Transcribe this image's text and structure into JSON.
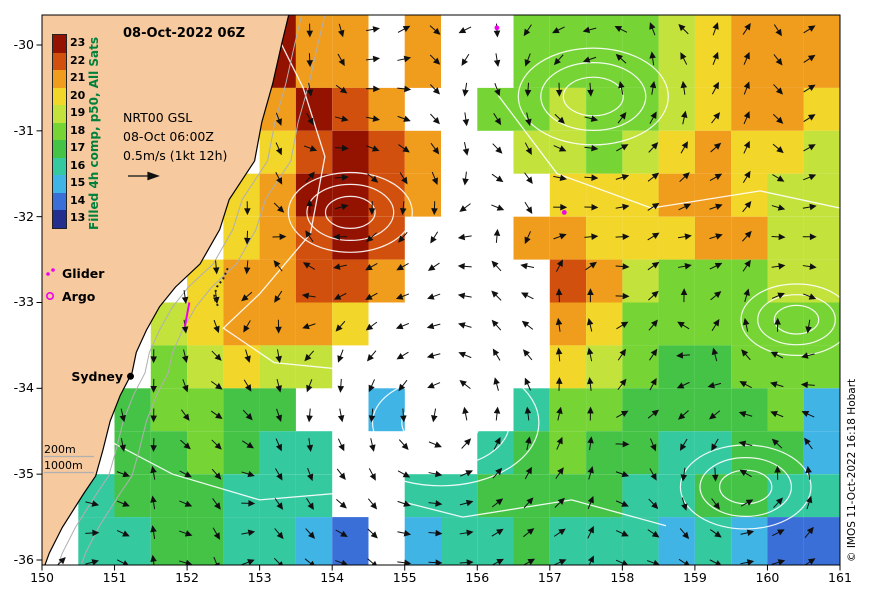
{
  "figure": {
    "title_date": "08-Oct-2022 06Z",
    "model": {
      "name": "NRT00 GSL",
      "time": "08-Oct 06:00Z",
      "scale": "0.5m/s (1kt 12h)"
    },
    "legend": {
      "glider": "Glider",
      "argo": "Argo"
    },
    "city_label": "Sydney",
    "depth_labels": [
      "200m",
      "1000m"
    ],
    "copyright": "© IMOS 11-Oct-2022 16:18 Hobart"
  },
  "colorbar": {
    "label": "Filled 4h comp, p50, All Sats",
    "label_color": "#00803c",
    "tick_labels": [
      "23",
      "22",
      "21",
      "20",
      "19",
      "18",
      "17",
      "16",
      "15",
      "14",
      "13"
    ]
  },
  "axes": {
    "x_ticks": [
      "150",
      "151",
      "152",
      "153",
      "154",
      "155",
      "156",
      "157",
      "158",
      "159",
      "160",
      "161"
    ],
    "y_ticks": [
      "-30",
      "-31",
      "-32",
      "-33",
      "-34",
      "-35",
      "-36"
    ]
  },
  "chart_data": {
    "type": "heatmap",
    "lon_range": [
      150,
      161
    ],
    "lat_range": [
      -36.06,
      -29.65
    ],
    "temp_range": [
      13,
      23
    ],
    "colormap": [
      "#242e8c",
      "#3a6fd8",
      "#41b4e6",
      "#35c9a0",
      "#45c347",
      "#76d435",
      "#c3e23c",
      "#f2d629",
      "#f09c1c",
      "#d2500e",
      "#941200"
    ],
    "colors": {
      "land": "#f6c99e",
      "marker_magenta": "#ee00ee",
      "contour_white": "#ffffff",
      "bathy_gray": "#b0b0b0",
      "arrow_black": "#111111"
    },
    "grid": {
      "lon_start": 150.0,
      "lon_step": 0.5,
      "lat_start": -30.0,
      "lat_step": -0.5,
      "values": [
        [
          null,
          null,
          null,
          null,
          null,
          null,
          23,
          21,
          21,
          null,
          21,
          null,
          null,
          18,
          18,
          18,
          18,
          19,
          20,
          21,
          21,
          21
        ],
        [
          null,
          null,
          null,
          null,
          null,
          null,
          21,
          23,
          22,
          21,
          null,
          null,
          18,
          18,
          19,
          18,
          18,
          19,
          20,
          21,
          21,
          20
        ],
        [
          null,
          null,
          null,
          null,
          null,
          null,
          20,
          22,
          23,
          22,
          21,
          null,
          null,
          19,
          19,
          18,
          19,
          20,
          21,
          20,
          20,
          19
        ],
        [
          null,
          null,
          null,
          null,
          null,
          20,
          21,
          23,
          23,
          22,
          21,
          null,
          null,
          null,
          20,
          20,
          20,
          21,
          21,
          20,
          19,
          19
        ],
        [
          null,
          null,
          null,
          null,
          null,
          20,
          21,
          22,
          23,
          22,
          null,
          null,
          null,
          21,
          21,
          20,
          20,
          20,
          21,
          21,
          19,
          19
        ],
        [
          null,
          null,
          null,
          null,
          20,
          21,
          21,
          22,
          22,
          21,
          null,
          null,
          null,
          null,
          22,
          21,
          19,
          18,
          18,
          18,
          19,
          19
        ],
        [
          null,
          null,
          null,
          19,
          20,
          21,
          21,
          21,
          20,
          null,
          null,
          null,
          null,
          null,
          21,
          20,
          18,
          18,
          18,
          18,
          18,
          18
        ],
        [
          null,
          null,
          null,
          18,
          19,
          20,
          19,
          19,
          null,
          null,
          null,
          null,
          null,
          null,
          20,
          19,
          18,
          17,
          17,
          18,
          18,
          18
        ],
        [
          null,
          null,
          17,
          18,
          18,
          17,
          17,
          null,
          null,
          15,
          null,
          null,
          null,
          16,
          18,
          18,
          17,
          17,
          17,
          17,
          18,
          15
        ],
        [
          null,
          null,
          17,
          17,
          18,
          17,
          16,
          16,
          null,
          null,
          null,
          null,
          16,
          17,
          18,
          17,
          17,
          16,
          16,
          17,
          17,
          15
        ],
        [
          null,
          16,
          17,
          17,
          17,
          16,
          16,
          16,
          null,
          null,
          16,
          16,
          17,
          17,
          17,
          17,
          16,
          16,
          17,
          17,
          16,
          16
        ],
        [
          null,
          16,
          16,
          17,
          17,
          16,
          16,
          15,
          14,
          null,
          15,
          16,
          16,
          17,
          16,
          16,
          16,
          15,
          16,
          15,
          14,
          14
        ]
      ]
    },
    "coastline": [
      [
        153.4,
        -29.65
      ],
      [
        153.3,
        -30.0
      ],
      [
        153.18,
        -30.45
      ],
      [
        153.03,
        -30.9
      ],
      [
        152.93,
        -31.35
      ],
      [
        152.58,
        -31.8
      ],
      [
        152.45,
        -32.15
      ],
      [
        152.18,
        -32.55
      ],
      [
        151.84,
        -32.82
      ],
      [
        151.62,
        -33.05
      ],
      [
        151.44,
        -33.32
      ],
      [
        151.3,
        -33.58
      ],
      [
        151.24,
        -33.82
      ],
      [
        151.08,
        -34.08
      ],
      [
        150.94,
        -34.38
      ],
      [
        150.84,
        -34.72
      ],
      [
        150.74,
        -35.02
      ],
      [
        150.58,
        -35.22
      ],
      [
        150.28,
        -35.62
      ],
      [
        150.1,
        -35.92
      ],
      [
        150.04,
        -36.06
      ]
    ],
    "eddies": [
      [
        157.6,
        -30.6,
        1,
        1.15
      ],
      [
        155.5,
        -34.4,
        1,
        1.5
      ],
      [
        159.7,
        -35.15,
        1,
        1.0
      ],
      [
        154.25,
        -31.95,
        -1,
        0.95
      ],
      [
        160.4,
        -33.2,
        -1,
        0.85
      ]
    ],
    "ssh_contours": [
      [
        [
          153.1,
          -29.65
        ],
        [
          153.6,
          -30.5
        ],
        [
          153.9,
          -31.3
        ],
        [
          153.7,
          -32.2
        ],
        [
          153.0,
          -32.9
        ],
        [
          152.5,
          -33.3
        ],
        [
          153.2,
          -33.7
        ],
        [
          154.4,
          -33.8
        ],
        [
          155.3,
          -34.1
        ]
      ],
      [
        [
          155.9,
          -29.65
        ],
        [
          156.3,
          -30.6
        ],
        [
          157.1,
          -31.5
        ],
        [
          158.4,
          -31.9
        ],
        [
          159.9,
          -31.7
        ],
        [
          161.0,
          -31.9
        ]
      ],
      [
        [
          150.9,
          -34.6
        ],
        [
          151.8,
          -35.0
        ],
        [
          153.0,
          -35.3
        ],
        [
          154.4,
          -35.2
        ],
        [
          155.8,
          -35.5
        ],
        [
          157.3,
          -35.3
        ],
        [
          158.6,
          -35.6
        ]
      ]
    ],
    "glider_tracks": {
      "dotted": [
        [
          152.56,
          -32.6
        ],
        [
          152.5,
          -32.72
        ],
        [
          152.41,
          -32.82
        ],
        [
          152.37,
          -32.94
        ],
        [
          152.43,
          -33.05
        ]
      ],
      "magenta": [
        [
          152.03,
          -33.0
        ],
        [
          152.0,
          -33.14
        ],
        [
          151.97,
          -33.28
        ]
      ]
    },
    "argo_positions": [
      [
        157.2,
        -31.95
      ],
      [
        156.27,
        -29.8
      ]
    ],
    "sydney": [
      151.22,
      -33.86
    ],
    "arrow_grid": {
      "lon0": 150.25,
      "dlon": 0.43,
      "lat0": -29.82,
      "dlat": 0.345,
      "lat_min": -36.05,
      "lon_max": 160.95
    }
  }
}
